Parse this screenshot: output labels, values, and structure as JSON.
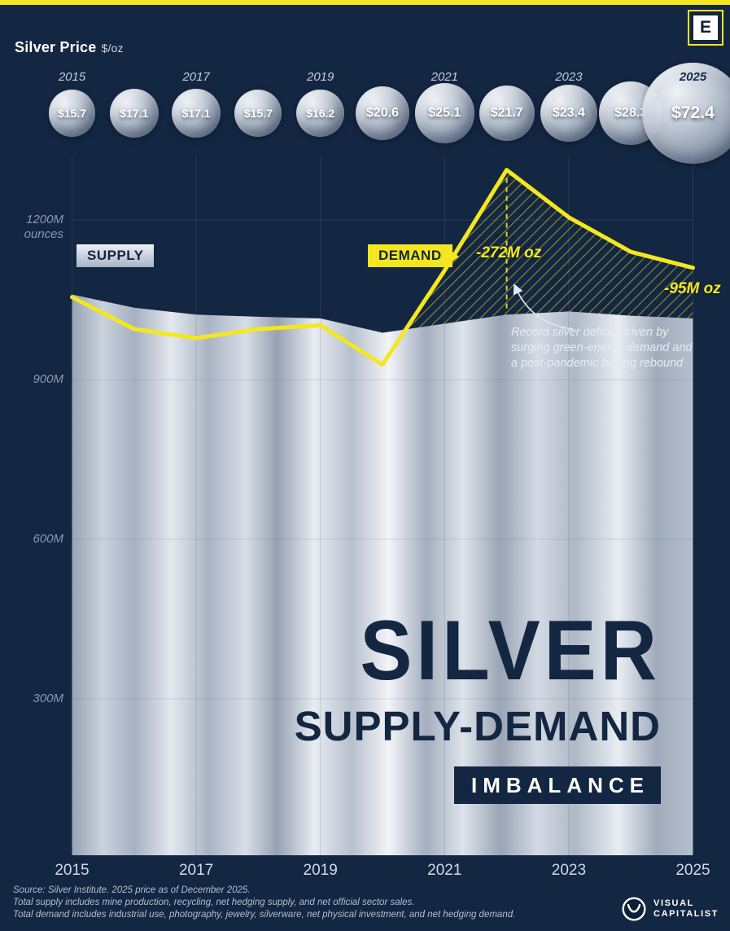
{
  "page": {
    "accent_yellow": "#f5e71f",
    "navy": "#132642",
    "header": {
      "price_label": "Silver Price",
      "price_unit": "$/oz",
      "logo_letter": "E"
    },
    "labels": {
      "supply": "SUPPLY",
      "demand": "DEMAND",
      "annotation": "Record silver deficit, driven by\nsurging green-energy demand and\na post-pandemic buying rebound"
    },
    "title": {
      "line1": "SILVER",
      "line2": "SUPPLY-DEMAND",
      "line3": "IMBALANCE"
    },
    "footer": {
      "line1": "Source: Silver Institute. 2025 price as of December 2025.",
      "line2": "Total supply includes mine production, recycling, net hedging supply, and net official sector sales.",
      "line3": "Total demand includes industrial use, photography, jewelry, silverware, net physical investment, and net hedging demand.",
      "logo_line1": "VISUAL",
      "logo_line2": "CAPITALIST"
    }
  },
  "chart_data": {
    "type": "area",
    "title": "Silver Supply-Demand Imbalance",
    "x": [
      2015,
      2016,
      2017,
      2018,
      2019,
      2020,
      2021,
      2022,
      2023,
      2024,
      2025
    ],
    "x_tick_labels": [
      "2015",
      "2017",
      "2019",
      "2021",
      "2023",
      "2025"
    ],
    "series": [
      {
        "name": "Supply",
        "values": [
          1060,
          1035,
          1022,
          1018,
          1015,
          988,
          1005,
          1022,
          1028,
          1020,
          1015
        ]
      },
      {
        "name": "Demand",
        "values": [
          1055,
          995,
          978,
          995,
          1002,
          928,
          1105,
          1294,
          1205,
          1140,
          1110
        ]
      }
    ],
    "price_bubbles": {
      "unit": "$/oz",
      "values": [
        15.7,
        17.1,
        17.1,
        15.7,
        16.2,
        20.6,
        25.1,
        21.7,
        23.4,
        28.3,
        72.4
      ],
      "labels": [
        "$15.7",
        "$17.1",
        "$17.1",
        "$15.7",
        "$16.2",
        "$20.6",
        "$25.1",
        "$21.7",
        "$23.4",
        "$28.3",
        "$72.4"
      ]
    },
    "y_ticks": [
      {
        "value": 300,
        "label": "300M"
      },
      {
        "value": 600,
        "label": "600M"
      },
      {
        "value": 900,
        "label": "900M"
      },
      {
        "value": 1200,
        "label": "1200M"
      }
    ],
    "ylabel": "ounces",
    "ylim": [
      0,
      1320
    ],
    "legend_position": "on-chart",
    "grid": true,
    "annotations": [
      {
        "x": 2022,
        "label": "-272M oz"
      },
      {
        "x": 2025,
        "label": "-95M oz"
      }
    ]
  }
}
